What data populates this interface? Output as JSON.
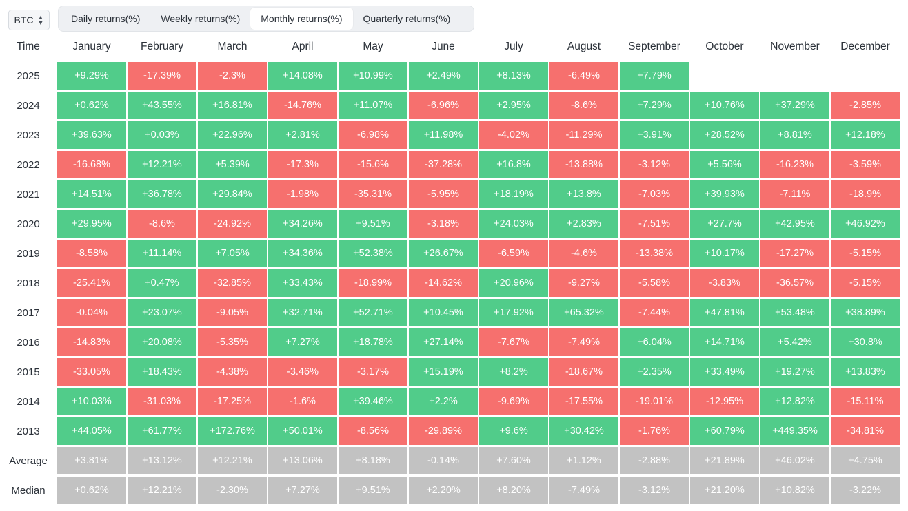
{
  "asset_selector": {
    "value": "BTC"
  },
  "tabs": [
    {
      "label": "Daily returns(%)",
      "active": false
    },
    {
      "label": "Weekly returns(%)",
      "active": false
    },
    {
      "label": "Monthly returns(%)",
      "active": true
    },
    {
      "label": "Quarterly returns(%)",
      "active": false
    }
  ],
  "table": {
    "time_header": "Time",
    "months": [
      "January",
      "February",
      "March",
      "April",
      "May",
      "June",
      "July",
      "August",
      "September",
      "October",
      "November",
      "December"
    ],
    "rows": [
      {
        "label": "2025",
        "values": [
          "+9.29%",
          "-17.39%",
          "-2.3%",
          "+14.08%",
          "+10.99%",
          "+2.49%",
          "+8.13%",
          "-6.49%",
          "+7.79%",
          "",
          "",
          ""
        ]
      },
      {
        "label": "2024",
        "values": [
          "+0.62%",
          "+43.55%",
          "+16.81%",
          "-14.76%",
          "+11.07%",
          "-6.96%",
          "+2.95%",
          "-8.6%",
          "+7.29%",
          "+10.76%",
          "+37.29%",
          "-2.85%"
        ]
      },
      {
        "label": "2023",
        "values": [
          "+39.63%",
          "+0.03%",
          "+22.96%",
          "+2.81%",
          "-6.98%",
          "+11.98%",
          "-4.02%",
          "-11.29%",
          "+3.91%",
          "+28.52%",
          "+8.81%",
          "+12.18%"
        ]
      },
      {
        "label": "2022",
        "values": [
          "-16.68%",
          "+12.21%",
          "+5.39%",
          "-17.3%",
          "-15.6%",
          "-37.28%",
          "+16.8%",
          "-13.88%",
          "-3.12%",
          "+5.56%",
          "-16.23%",
          "-3.59%"
        ]
      },
      {
        "label": "2021",
        "values": [
          "+14.51%",
          "+36.78%",
          "+29.84%",
          "-1.98%",
          "-35.31%",
          "-5.95%",
          "+18.19%",
          "+13.8%",
          "-7.03%",
          "+39.93%",
          "-7.11%",
          "-18.9%"
        ]
      },
      {
        "label": "2020",
        "values": [
          "+29.95%",
          "-8.6%",
          "-24.92%",
          "+34.26%",
          "+9.51%",
          "-3.18%",
          "+24.03%",
          "+2.83%",
          "-7.51%",
          "+27.7%",
          "+42.95%",
          "+46.92%"
        ]
      },
      {
        "label": "2019",
        "values": [
          "-8.58%",
          "+11.14%",
          "+7.05%",
          "+34.36%",
          "+52.38%",
          "+26.67%",
          "-6.59%",
          "-4.6%",
          "-13.38%",
          "+10.17%",
          "-17.27%",
          "-5.15%"
        ]
      },
      {
        "label": "2018",
        "values": [
          "-25.41%",
          "+0.47%",
          "-32.85%",
          "+33.43%",
          "-18.99%",
          "-14.62%",
          "+20.96%",
          "-9.27%",
          "-5.58%",
          "-3.83%",
          "-36.57%",
          "-5.15%"
        ]
      },
      {
        "label": "2017",
        "values": [
          "-0.04%",
          "+23.07%",
          "-9.05%",
          "+32.71%",
          "+52.71%",
          "+10.45%",
          "+17.92%",
          "+65.32%",
          "-7.44%",
          "+47.81%",
          "+53.48%",
          "+38.89%"
        ]
      },
      {
        "label": "2016",
        "values": [
          "-14.83%",
          "+20.08%",
          "-5.35%",
          "+7.27%",
          "+18.78%",
          "+27.14%",
          "-7.67%",
          "-7.49%",
          "+6.04%",
          "+14.71%",
          "+5.42%",
          "+30.8%"
        ]
      },
      {
        "label": "2015",
        "values": [
          "-33.05%",
          "+18.43%",
          "-4.38%",
          "-3.46%",
          "-3.17%",
          "+15.19%",
          "+8.2%",
          "-18.67%",
          "+2.35%",
          "+33.49%",
          "+19.27%",
          "+13.83%"
        ]
      },
      {
        "label": "2014",
        "values": [
          "+10.03%",
          "-31.03%",
          "-17.25%",
          "-1.6%",
          "+39.46%",
          "+2.2%",
          "-9.69%",
          "-17.55%",
          "-19.01%",
          "-12.95%",
          "+12.82%",
          "-15.11%"
        ]
      },
      {
        "label": "2013",
        "values": [
          "+44.05%",
          "+61.77%",
          "+172.76%",
          "+50.01%",
          "-8.56%",
          "-29.89%",
          "+9.6%",
          "+30.42%",
          "-1.76%",
          "+60.79%",
          "+449.35%",
          "-34.81%"
        ]
      }
    ],
    "summary_rows": [
      {
        "label": "Average",
        "values": [
          "+3.81%",
          "+13.12%",
          "+12.21%",
          "+13.06%",
          "+8.18%",
          "-0.14%",
          "+7.60%",
          "+1.12%",
          "-2.88%",
          "+21.89%",
          "+46.02%",
          "+4.75%"
        ]
      },
      {
        "label": "Median",
        "values": [
          "+0.62%",
          "+12.21%",
          "-2.30%",
          "+7.27%",
          "+9.51%",
          "+2.20%",
          "+8.20%",
          "-7.49%",
          "-3.12%",
          "+21.20%",
          "+10.82%",
          "-3.22%"
        ]
      }
    ]
  },
  "colors": {
    "positive": "#51cc8a",
    "negative": "#f6706e",
    "summary": "#c2c2c2"
  }
}
